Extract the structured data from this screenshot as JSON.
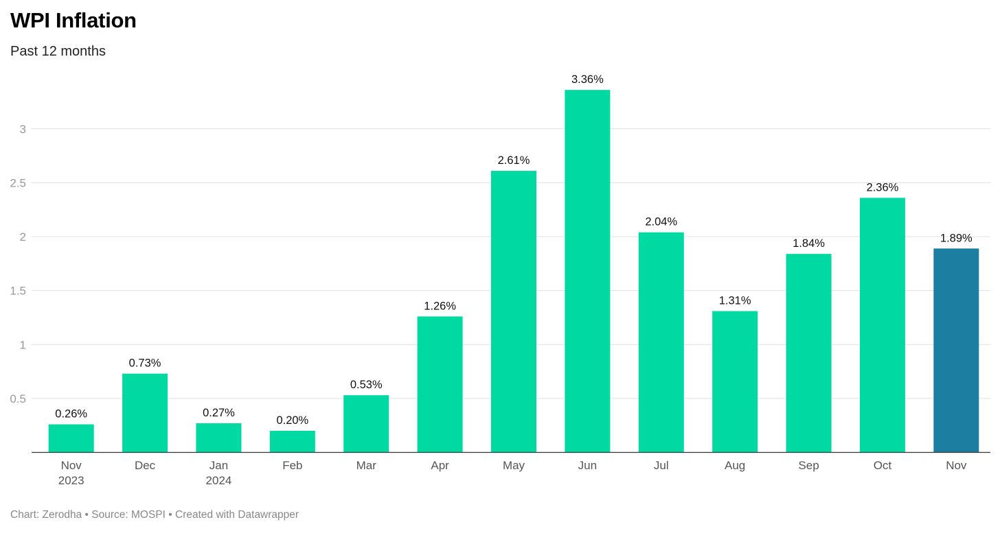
{
  "header": {
    "title": "WPI Inflation",
    "subtitle": "Past 12 months"
  },
  "footer": {
    "text": "Chart: Zerodha • Source: MOSPI • Created with Datawrapper"
  },
  "chart_data": {
    "type": "bar",
    "title": "WPI Inflation",
    "subtitle": "Past 12 months",
    "categories": [
      [
        "Nov",
        "2023"
      ],
      [
        "Dec"
      ],
      [
        "Jan",
        "2024"
      ],
      [
        "Feb"
      ],
      [
        "Mar"
      ],
      [
        "Apr"
      ],
      [
        "May"
      ],
      [
        "Jun"
      ],
      [
        "Jul"
      ],
      [
        "Aug"
      ],
      [
        "Sep"
      ],
      [
        "Oct"
      ],
      [
        "Nov"
      ]
    ],
    "values": [
      0.26,
      0.73,
      0.27,
      0.2,
      0.53,
      1.26,
      2.61,
      3.36,
      2.04,
      1.31,
      1.84,
      2.36,
      1.89
    ],
    "data_labels": [
      "0.26%",
      "0.73%",
      "0.27%",
      "0.20%",
      "0.53%",
      "1.26%",
      "2.61%",
      "3.36%",
      "2.04%",
      "1.31%",
      "1.84%",
      "2.36%",
      "1.89%"
    ],
    "highlight_index": 12,
    "colors": {
      "bar": "#00d9a1",
      "highlight": "#1c7ea1"
    },
    "yticks": [
      0.5,
      1,
      1.5,
      2,
      2.5,
      3
    ],
    "ytick_labels": [
      "0.5",
      "1",
      "1.5",
      "2",
      "2.5",
      "3"
    ],
    "ylim": [
      0,
      3.5
    ],
    "xlabel": "",
    "ylabel": "",
    "grid": true
  }
}
